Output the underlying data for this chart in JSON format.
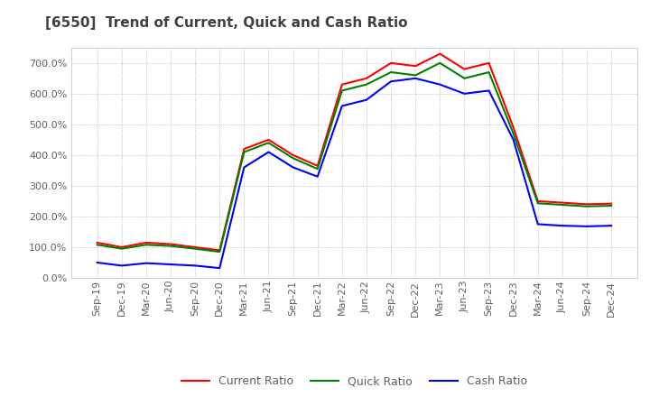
{
  "title": "[6550]  Trend of Current, Quick and Cash Ratio",
  "x_labels": [
    "Sep-19",
    "Dec-19",
    "Mar-20",
    "Jun-20",
    "Sep-20",
    "Dec-20",
    "Mar-21",
    "Jun-21",
    "Sep-21",
    "Dec-21",
    "Mar-22",
    "Jun-22",
    "Sep-22",
    "Dec-22",
    "Mar-23",
    "Jun-23",
    "Sep-23",
    "Dec-23",
    "Mar-24",
    "Jun-24",
    "Sep-24",
    "Dec-24"
  ],
  "current_ratio": [
    115,
    100,
    115,
    110,
    100,
    90,
    420,
    450,
    400,
    365,
    630,
    650,
    700,
    690,
    730,
    680,
    700,
    490,
    250,
    245,
    240,
    242
  ],
  "quick_ratio": [
    108,
    95,
    108,
    104,
    95,
    85,
    410,
    440,
    390,
    355,
    610,
    630,
    670,
    660,
    700,
    650,
    670,
    470,
    243,
    238,
    233,
    235
  ],
  "cash_ratio": [
    50,
    40,
    48,
    44,
    40,
    32,
    360,
    410,
    360,
    330,
    560,
    580,
    640,
    650,
    630,
    600,
    610,
    450,
    175,
    170,
    168,
    170
  ],
  "ylim": [
    0,
    750
  ],
  "yticks": [
    0,
    100,
    200,
    300,
    400,
    500,
    600,
    700
  ],
  "current_color": "#FF0000",
  "quick_color": "#008000",
  "cash_color": "#0000FF",
  "background_color": "#FFFFFF",
  "grid_color": "#AAAAAA",
  "title_color": "#404040",
  "label_color": "#606060",
  "title_fontsize": 11,
  "tick_fontsize": 8,
  "legend_fontsize": 9
}
